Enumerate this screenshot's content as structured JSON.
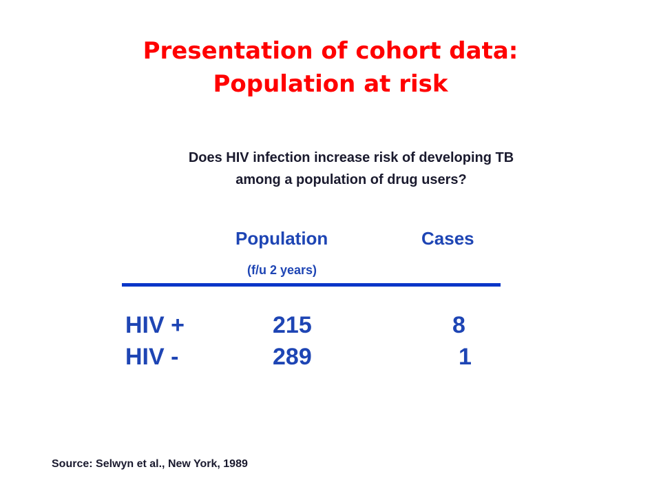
{
  "slide": {
    "title_lines": [
      "Presentation of cohort data:",
      "Population at risk"
    ],
    "question_lines": [
      "Does HIV infection increase risk of developing TB",
      "among a population of drug users?"
    ],
    "columns": {
      "population": "Population",
      "cases": "Cases"
    },
    "followup_note": "(f/u 2 years)",
    "rows": [
      {
        "label": "HIV +",
        "population": "215",
        "cases": "8"
      },
      {
        "label": "HIV -",
        "population": "289",
        "cases": "1"
      }
    ],
    "source": "Source: Selwyn et al., New York, 1989"
  },
  "colors": {
    "title": "#ff0000",
    "table_text": "#1e45b4",
    "rule": "#0a36c8",
    "body_text": "#1a1a2e"
  }
}
